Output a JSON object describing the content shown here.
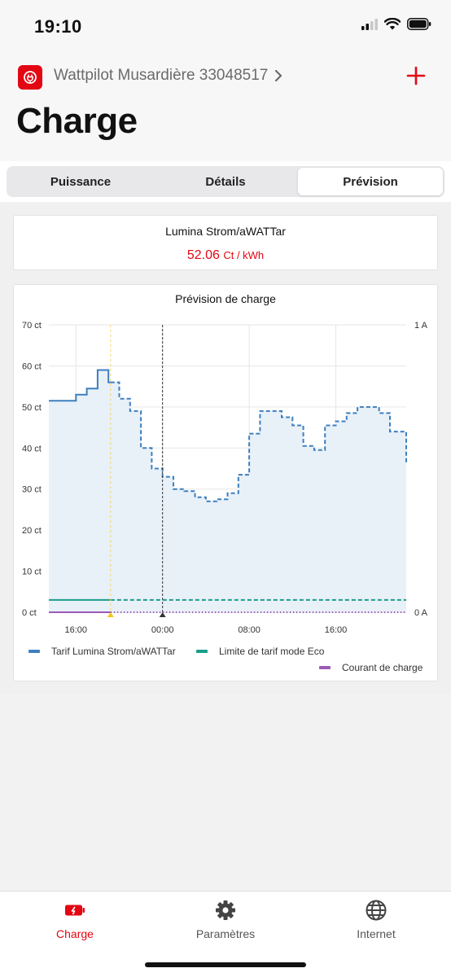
{
  "status": {
    "time": "19:10"
  },
  "header": {
    "device_name": "Wattpilot Musardière 33048517",
    "title": "Charge"
  },
  "tabs": [
    {
      "label": "Puissance",
      "active": false
    },
    {
      "label": "Détails",
      "active": false
    },
    {
      "label": "Prévision",
      "active": true
    }
  ],
  "tariff": {
    "name": "Lumina Strom/aWATTar",
    "price": "52.06",
    "unit": "Ct / kWh"
  },
  "chart": {
    "title": "Prévision de charge"
  },
  "chart_data": {
    "type": "line",
    "title": "Prévision de charge",
    "y_ticks": [
      "0 ct",
      "10 ct",
      "20 ct",
      "30 ct",
      "40 ct",
      "50 ct",
      "60 ct",
      "70 ct"
    ],
    "y2_ticks": [
      "0 A",
      "1 A"
    ],
    "x_ticks": [
      "16:00",
      "00:00",
      "08:00",
      "16:00"
    ],
    "x_tick_hours": [
      16,
      24,
      32,
      40
    ],
    "x_range_hours": [
      13.5,
      46.5
    ],
    "ylim": [
      0,
      70
    ],
    "grid": true,
    "current_time_hour": 19.2,
    "now_marker_hour": 24,
    "series": [
      {
        "name": "Tarif Lumina Strom/aWATTar",
        "color": "#3d7fbf",
        "x_hours": [
          13.5,
          15,
          16,
          17,
          18,
          19,
          20,
          21,
          22,
          23,
          24,
          25,
          26,
          27,
          28,
          29,
          30,
          31,
          32,
          33,
          34,
          35,
          36,
          37,
          38,
          39,
          40,
          41,
          42,
          43,
          44,
          45,
          46.5
        ],
        "values": [
          51.5,
          51.5,
          53,
          54.5,
          59,
          56,
          52,
          49,
          40,
          35,
          33,
          30,
          29.5,
          28,
          27,
          27.5,
          29,
          33.5,
          43.5,
          49,
          49,
          47.5,
          45.5,
          40.5,
          39.5,
          45.5,
          46.5,
          48.5,
          50,
          50,
          48.5,
          44,
          36.5
        ],
        "dashed_after_hour": 19.2
      },
      {
        "name": "Limite de tarif mode Eco",
        "color": "#1a9e8a",
        "value": 3
      },
      {
        "name": "Courant de charge",
        "color": "#9b59b6",
        "value": 0
      }
    ],
    "legend": [
      "Tarif Lumina Strom/aWATTar",
      "Limite de tarif mode Eco",
      "Courant de charge"
    ]
  },
  "tabbar": {
    "items": [
      {
        "label": "Charge"
      },
      {
        "label": "Paramètres"
      },
      {
        "label": "Internet"
      }
    ]
  },
  "colors": {
    "accent": "#e30613",
    "price": "#3d7fbf",
    "eco": "#1a9e8a",
    "current": "#9b59b6"
  }
}
